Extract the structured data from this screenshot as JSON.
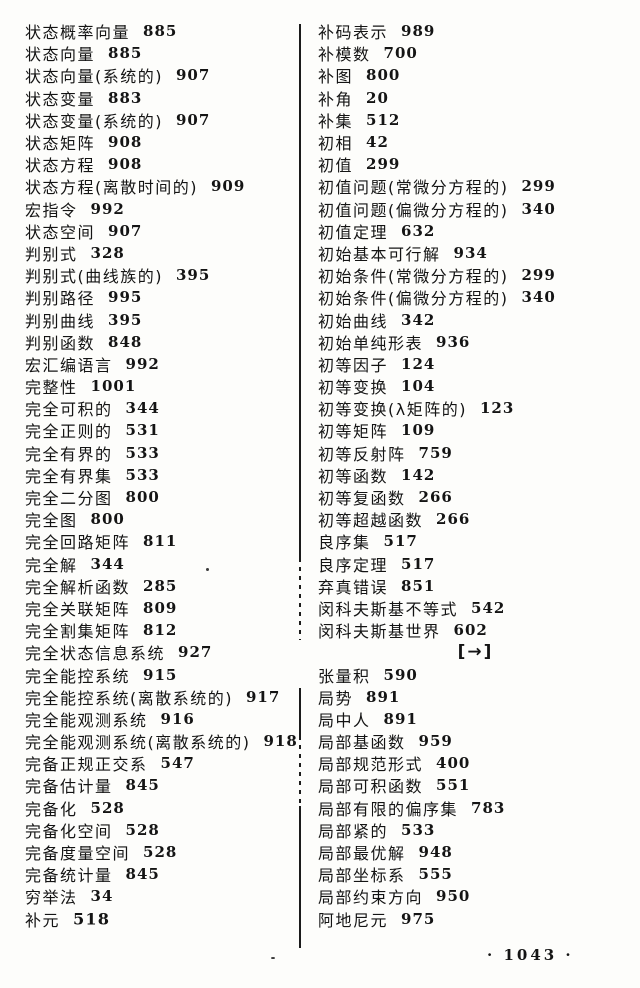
{
  "page": {
    "folio": "· 1043 ·",
    "divider_color": "#1b1b1b",
    "section_header": "[→]"
  },
  "left_column": [
    {
      "term": "状态概率向量",
      "page": "885"
    },
    {
      "term": "状态向量",
      "page": "885"
    },
    {
      "term": "状态向量(系统的)",
      "page": "907"
    },
    {
      "term": "状态变量",
      "page": "883"
    },
    {
      "term": "状态变量(系统的)",
      "page": "907"
    },
    {
      "term": "状态矩阵",
      "page": "908"
    },
    {
      "term": "状态方程",
      "page": "908"
    },
    {
      "term": "状态方程(离散时间的)",
      "page": "909"
    },
    {
      "term": "宏指令",
      "page": "992"
    },
    {
      "term": "状态空间",
      "page": "907"
    },
    {
      "term": "判别式",
      "page": "328"
    },
    {
      "term": "判别式(曲线族的)",
      "page": "395"
    },
    {
      "term": "判别路径",
      "page": "995"
    },
    {
      "term": "判别曲线",
      "page": "395"
    },
    {
      "term": "判别函数",
      "page": "848"
    },
    {
      "term": "宏汇编语言",
      "page": "992"
    },
    {
      "term": "完整性",
      "page": "1001"
    },
    {
      "term": "完全可积的",
      "page": "344"
    },
    {
      "term": "完全正则的",
      "page": "531"
    },
    {
      "term": "完全有界的",
      "page": "533"
    },
    {
      "term": "完全有界集",
      "page": "533"
    },
    {
      "term": "完全二分图",
      "page": "800"
    },
    {
      "term": "完全图",
      "page": "800"
    },
    {
      "term": "完全回路矩阵",
      "page": "811"
    },
    {
      "term": "完全解",
      "page": "344"
    },
    {
      "term": "完全解析函数",
      "page": "285"
    },
    {
      "term": "完全关联矩阵",
      "page": "809"
    },
    {
      "term": "完全割集矩阵",
      "page": "812"
    },
    {
      "term": "完全状态信息系统",
      "page": "927"
    },
    {
      "term": "完全能控系统",
      "page": "915"
    },
    {
      "term": "完全能控系统(离散系统的)",
      "page": "917"
    },
    {
      "term": "完全能观测系统",
      "page": "916"
    },
    {
      "term": "完全能观测系统(离散系统的)",
      "page": "918"
    },
    {
      "term": "完备正规正交系",
      "page": "547"
    },
    {
      "term": "完备估计量",
      "page": "845"
    },
    {
      "term": "完备化",
      "page": "528"
    },
    {
      "term": "完备化空间",
      "page": "528"
    },
    {
      "term": "完备度量空间",
      "page": "528"
    },
    {
      "term": "完备统计量",
      "page": "845"
    },
    {
      "term": "穷举法",
      "page": "34"
    },
    {
      "term": "补元",
      "page": "518",
      "bold": true
    }
  ],
  "right_column": [
    {
      "term": "补码表示",
      "page": "989"
    },
    {
      "term": "补模数",
      "page": "700"
    },
    {
      "term": "补图",
      "page": "800"
    },
    {
      "term": "补角",
      "page": "20"
    },
    {
      "term": "补集",
      "page": "512"
    },
    {
      "term": "初相",
      "page": "42"
    },
    {
      "term": "初值",
      "page": "299"
    },
    {
      "term": "初值问题(常微分方程的)",
      "page": "299"
    },
    {
      "term": "初值问题(偏微分方程的)",
      "page": "340"
    },
    {
      "term": "初值定理",
      "page": "632"
    },
    {
      "term": "初始基本可行解",
      "page": "934"
    },
    {
      "term": "初始条件(常微分方程的)",
      "page": "299"
    },
    {
      "term": "初始条件(偏微分方程的)",
      "page": "340"
    },
    {
      "term": "初始曲线",
      "page": "342"
    },
    {
      "term": "初始单纯形表",
      "page": "936"
    },
    {
      "term": "初等因子",
      "page": "124"
    },
    {
      "term": "初等变换",
      "page": "104"
    },
    {
      "term": "初等变换(λ矩阵的)",
      "page": "123"
    },
    {
      "term": "初等矩阵",
      "page": "109"
    },
    {
      "term": "初等反射阵",
      "page": "759"
    },
    {
      "term": "初等函数",
      "page": "142"
    },
    {
      "term": "初等复函数",
      "page": "266"
    },
    {
      "term": "初等超越函数",
      "page": "266"
    },
    {
      "term": "良序集",
      "page": "517"
    },
    {
      "term": "良序定理",
      "page": "517"
    },
    {
      "term": "弃真错误",
      "page": "851"
    },
    {
      "term": "闵科夫斯基不等式",
      "page": "542"
    },
    {
      "term": "闵科夫斯基世界",
      "page": "602"
    },
    {
      "header": "[→]"
    },
    {
      "term": "张量积",
      "page": "590"
    },
    {
      "term": "局势",
      "page": "891"
    },
    {
      "term": "局中人",
      "page": "891"
    },
    {
      "term": "局部基函数",
      "page": "959"
    },
    {
      "term": "局部规范形式",
      "page": "400"
    },
    {
      "term": "局部可积函数",
      "page": "551"
    },
    {
      "term": "局部有限的偏序集",
      "page": "783"
    },
    {
      "term": "局部紧的",
      "page": "533"
    },
    {
      "term": "局部最优解",
      "page": "948"
    },
    {
      "term": "局部坐标系",
      "page": "555"
    },
    {
      "term": "局部约束方向",
      "page": "950"
    },
    {
      "term": "阿地尼元",
      "page": "975"
    }
  ]
}
